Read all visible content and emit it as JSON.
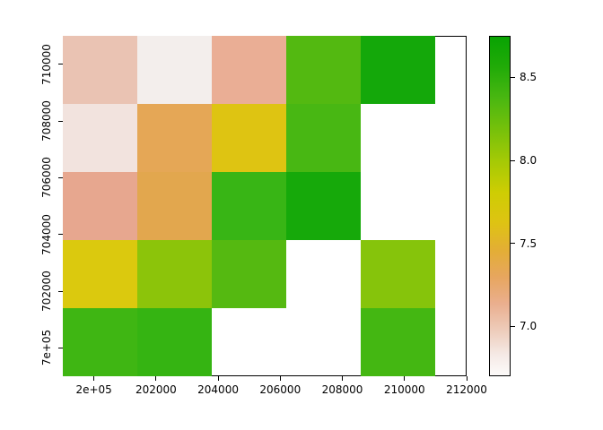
{
  "figure": {
    "background": "#FFFFFF"
  },
  "chart_data": {
    "type": "heatmap",
    "title": "",
    "xlabel": "",
    "ylabel": "",
    "x_axis": {
      "range": [
        199000,
        212000
      ],
      "ticks": [
        200000,
        202000,
        204000,
        206000,
        208000,
        210000,
        212000
      ],
      "tick_labels": [
        "2e+05",
        "202000",
        "204000",
        "206000",
        "208000",
        "210000",
        "212000"
      ]
    },
    "y_axis": {
      "range": [
        699000,
        711000
      ],
      "ticks": [
        700000,
        702000,
        704000,
        706000,
        708000,
        710000
      ],
      "tick_labels": [
        "7e+05",
        "702000",
        "704000",
        "706000",
        "708000",
        "710000"
      ]
    },
    "grid": {
      "x_extent": [
        199000,
        211000
      ],
      "y_extent": [
        699000,
        711000
      ],
      "ncols": 5,
      "nrows": 5,
      "na_color": "#FFFFFF",
      "rows_top_to_bottom": [
        {
          "colors": [
            "#EAC3B3",
            "#F3EEEC",
            "#EAAE95",
            "#53B911",
            "#14A80A"
          ],
          "values": [
            7.05,
            6.78,
            7.12,
            8.28,
            8.62
          ]
        },
        {
          "colors": [
            "#F2E3DE",
            "#E5A756",
            "#DEC412",
            "#48B713",
            null
          ],
          "values": [
            6.92,
            7.3,
            7.56,
            8.32,
            null
          ]
        },
        {
          "colors": [
            "#E7A78F",
            "#E2A74E",
            "#38B515",
            "#16A90A",
            null
          ],
          "values": [
            7.13,
            7.32,
            8.36,
            8.6,
            null
          ]
        },
        {
          "colors": [
            "#DBC90E",
            "#8CC40A",
            "#55B911",
            null,
            "#86C40B"
          ],
          "values": [
            7.58,
            8.03,
            8.28,
            null,
            8.04
          ]
        },
        {
          "colors": [
            "#3FB613",
            "#35B412",
            null,
            null,
            "#44B712"
          ],
          "values": [
            8.33,
            8.35,
            null,
            null,
            8.3
          ]
        }
      ]
    },
    "legend": {
      "position": "right",
      "range": [
        6.7,
        8.75
      ],
      "ticks": [
        7.0,
        7.5,
        8.0,
        8.5
      ],
      "tick_labels": [
        "7.0",
        "7.5",
        "8.0",
        "8.5"
      ],
      "gradient_stops": [
        {
          "at": 0.0,
          "color": "#FCFAF9"
        },
        {
          "at": 0.06,
          "color": "#F5EAE6"
        },
        {
          "at": 0.13,
          "color": "#EECDBC"
        },
        {
          "at": 0.21,
          "color": "#EAAF8F"
        },
        {
          "at": 0.29,
          "color": "#E7A65F"
        },
        {
          "at": 0.37,
          "color": "#E3AE35"
        },
        {
          "at": 0.45,
          "color": "#DEC313"
        },
        {
          "at": 0.54,
          "color": "#CECD03"
        },
        {
          "at": 0.63,
          "color": "#A6CA05"
        },
        {
          "at": 0.72,
          "color": "#79C10A"
        },
        {
          "at": 0.82,
          "color": "#49B711"
        },
        {
          "at": 0.91,
          "color": "#21AB08"
        },
        {
          "at": 1.0,
          "color": "#08A302"
        }
      ]
    }
  }
}
